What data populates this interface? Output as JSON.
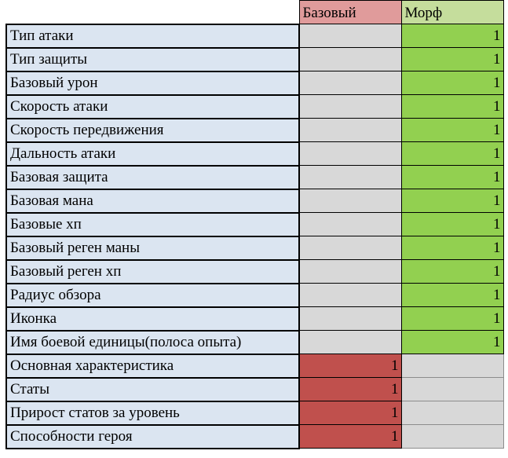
{
  "header": {
    "base_label": "Базовый",
    "morph_label": "Морф"
  },
  "colors": {
    "label_bg": "#dbe5f1",
    "gray_bg": "#d8d8d8",
    "green_bg": "#92d050",
    "red_bg": "#c0504d",
    "header_base_bg": "#e09b9b",
    "header_morph_bg": "#c5dd9c"
  },
  "rows": [
    {
      "label": "Тип атаки",
      "base": "",
      "morph": "1"
    },
    {
      "label": "Тип защиты",
      "base": "",
      "morph": "1"
    },
    {
      "label": "Базовый урон",
      "base": "",
      "morph": "1"
    },
    {
      "label": "Скорость атаки",
      "base": "",
      "morph": "1"
    },
    {
      "label": "Скорость передвижения",
      "base": "",
      "morph": "1"
    },
    {
      "label": "Дальность атаки",
      "base": "",
      "morph": "1"
    },
    {
      "label": "Базовая защита",
      "base": "",
      "morph": "1"
    },
    {
      "label": "Базовая мана",
      "base": "",
      "morph": "1"
    },
    {
      "label": "Базовые хп",
      "base": "",
      "morph": "1"
    },
    {
      "label": "Базовый реген маны",
      "base": "",
      "morph": "1"
    },
    {
      "label": "Базовый реген хп",
      "base": "",
      "morph": "1"
    },
    {
      "label": "Радиус обзора",
      "base": "",
      "morph": "1"
    },
    {
      "label": "Иконка",
      "base": "",
      "morph": "1"
    },
    {
      "label": "Имя боевой единицы(полоса опыта)",
      "base": "",
      "morph": "1"
    },
    {
      "label": "Основная характеристика",
      "base": "1",
      "morph": ""
    },
    {
      "label": "Статы",
      "base": "1",
      "morph": ""
    },
    {
      "label": "Прирост статов за уровень",
      "base": "1",
      "morph": ""
    },
    {
      "label": "Способности героя",
      "base": "1",
      "morph": ""
    }
  ]
}
